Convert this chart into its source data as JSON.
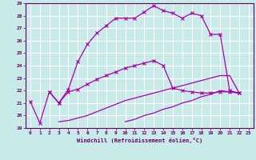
{
  "xlabel": "Windchill (Refroidissement éolien,°C)",
  "background_color": "#c8eae8",
  "grid_color": "#ffffff",
  "line_color": "#aa00aa",
  "xlim": [
    -0.5,
    23.5
  ],
  "ylim": [
    19,
    29
  ],
  "yticks": [
    19,
    20,
    21,
    22,
    23,
    24,
    25,
    26,
    27,
    28,
    29
  ],
  "xticks": [
    0,
    1,
    2,
    3,
    4,
    5,
    6,
    7,
    8,
    9,
    10,
    11,
    12,
    13,
    14,
    15,
    16,
    17,
    18,
    19,
    20,
    21,
    22,
    23
  ],
  "line1_x": [
    0,
    1,
    2,
    3,
    4,
    5,
    6,
    7,
    8,
    9,
    10,
    11,
    12,
    13,
    14,
    15,
    16,
    17,
    18,
    19,
    20,
    21,
    22
  ],
  "line1_y": [
    21.1,
    19.4,
    21.9,
    21.0,
    22.1,
    24.3,
    25.7,
    26.6,
    27.2,
    27.8,
    27.8,
    27.8,
    28.3,
    28.8,
    28.4,
    28.2,
    27.8,
    28.2,
    28.0,
    26.5,
    26.5,
    22.0,
    21.8
  ],
  "line2_x": [
    2,
    3,
    4,
    5,
    6,
    7,
    8,
    9,
    10,
    11,
    12,
    13,
    14,
    15,
    16,
    17,
    18,
    19,
    20,
    21,
    22
  ],
  "line2_y": [
    21.9,
    21.0,
    21.9,
    22.1,
    22.5,
    22.9,
    23.2,
    23.5,
    23.8,
    24.0,
    24.2,
    24.4,
    24.0,
    22.2,
    22.0,
    21.9,
    21.8,
    21.8,
    21.9,
    21.9,
    21.8
  ],
  "line3_x": [
    3,
    4,
    5,
    6,
    7,
    8,
    9,
    10,
    11,
    12,
    13,
    14,
    15,
    16,
    17,
    18,
    19,
    20,
    21,
    22
  ],
  "line3_y": [
    19.5,
    19.6,
    19.8,
    20.0,
    20.3,
    20.6,
    20.9,
    21.2,
    21.4,
    21.6,
    21.8,
    22.0,
    22.2,
    22.4,
    22.6,
    22.8,
    23.0,
    23.2,
    23.2,
    21.8
  ],
  "line4_x": [
    10,
    11,
    12,
    13,
    14,
    15,
    16,
    17,
    18,
    19,
    20,
    21,
    22
  ],
  "line4_y": [
    19.5,
    19.7,
    20.0,
    20.2,
    20.5,
    20.7,
    21.0,
    21.2,
    21.5,
    21.7,
    22.0,
    21.9,
    21.8
  ]
}
